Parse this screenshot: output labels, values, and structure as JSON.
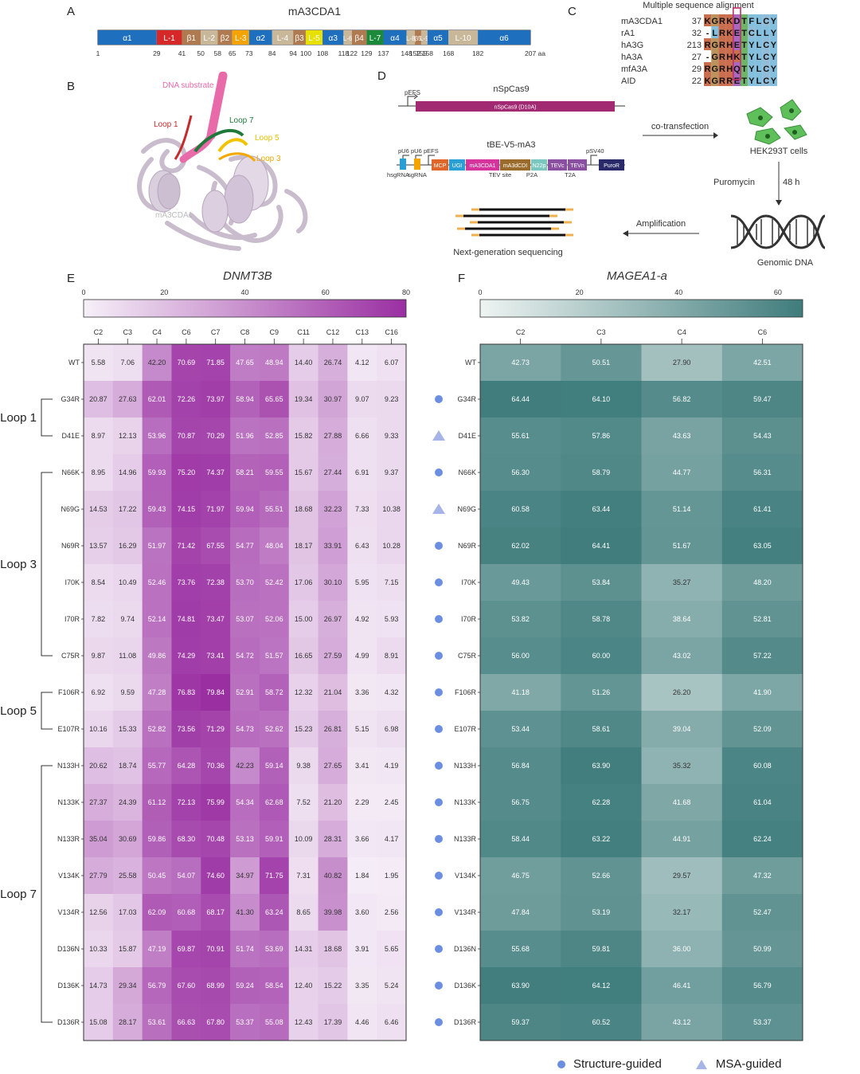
{
  "panels": {
    "A": "A",
    "B": "B",
    "C": "C",
    "D": "D",
    "E": "E",
    "F": "F"
  },
  "panelA": {
    "title": "mA3CDA1",
    "segments": [
      {
        "label": "α1",
        "start": 1,
        "end": 29,
        "color": "#1f6fbf"
      },
      {
        "label": "L-1",
        "start": 29,
        "end": 41,
        "color": "#d62828"
      },
      {
        "label": "β1",
        "start": 41,
        "end": 50,
        "color": "#b07a50"
      },
      {
        "label": "L-2",
        "start": 50,
        "end": 58,
        "color": "#c9b79a"
      },
      {
        "label": "β2",
        "start": 58,
        "end": 65,
        "color": "#b07a50"
      },
      {
        "label": "L-3",
        "start": 65,
        "end": 73,
        "color": "#f4a300"
      },
      {
        "label": "α2",
        "start": 73,
        "end": 84,
        "color": "#1f6fbf"
      },
      {
        "label": "L-4",
        "start": 84,
        "end": 94,
        "color": "#c9b79a"
      },
      {
        "label": "β3",
        "start": 94,
        "end": 100,
        "color": "#b07a50"
      },
      {
        "label": "L-5",
        "start": 100,
        "end": 108,
        "color": "#e8e000"
      },
      {
        "label": "α3",
        "start": 108,
        "end": 118,
        "color": "#1f6fbf"
      },
      {
        "label": "L-6",
        "start": 118,
        "end": 122,
        "color": "#c9b79a"
      },
      {
        "label": "β4",
        "start": 122,
        "end": 129,
        "color": "#b07a50"
      },
      {
        "label": "L-7",
        "start": 129,
        "end": 137,
        "color": "#1a8a3a"
      },
      {
        "label": "α4",
        "start": 137,
        "end": 148,
        "color": "#1f6fbf"
      },
      {
        "label": "L-8",
        "start": 148,
        "end": 152,
        "color": "#c9b79a"
      },
      {
        "label": "β5",
        "start": 152,
        "end": 155,
        "color": "#b07a50"
      },
      {
        "label": "L-9",
        "start": 155,
        "end": 158,
        "color": "#c9b79a"
      },
      {
        "label": "α5",
        "start": 158,
        "end": 168,
        "color": "#1f6fbf"
      },
      {
        "label": "L-10",
        "start": 168,
        "end": 182,
        "color": "#c9b79a"
      },
      {
        "label": "α6",
        "start": 182,
        "end": 207,
        "color": "#1f6fbf"
      }
    ],
    "ticks": [
      "1",
      "29",
      "41",
      "50",
      "58",
      "65",
      "73",
      "84",
      "94",
      "100",
      "108",
      "118",
      "122",
      "129",
      "137",
      "148",
      "152",
      "155",
      "158",
      "168",
      "182",
      "207 aa"
    ]
  },
  "panelB": {
    "dna_label": "DNA substrate",
    "loop1": "Loop 1",
    "loop7": "Loop 7",
    "loop5": "Loop 5",
    "loop3": "Loop 3",
    "protein": "mA3CDA1"
  },
  "panelC": {
    "title": "Multiple sequence alignment",
    "rows": [
      {
        "name": "mA3CDA1",
        "num": "37",
        "seq": "KGRKDTFLCY"
      },
      {
        "name": "rA1",
        "num": "32",
        "seq": "-LRKETCLLY"
      },
      {
        "name": "hA3G",
        "num": "213",
        "seq": "RGRHETYLCY"
      },
      {
        "name": "hA3A",
        "num": "27",
        "seq": "-GRHKTYLCY"
      },
      {
        "name": "mfA3A",
        "num": "29",
        "seq": "RGRHQTYLCY"
      },
      {
        "name": "AID",
        "num": "22",
        "seq": "KGRRETYLCY"
      }
    ]
  },
  "panelD": {
    "top_title": "nSpCas9",
    "promoter1": "pEFS",
    "cas9_box": "nSpCas9 (D10A)",
    "be_title": "tBE-V5-mA3",
    "promoters": [
      "pU6",
      "pU6",
      "pEFS",
      "pSV40"
    ],
    "sub_labels": [
      "hsgRNA",
      "sgRNA",
      "TEV site",
      "P2A",
      "T2A"
    ],
    "boxes": [
      "MCP",
      "UGI",
      "mA3CDA1",
      "mA3dCDI",
      "N22p",
      "TEVc",
      "TEVn",
      "PuroR"
    ],
    "cotransfection": "co-transfection",
    "cells": "HEK293T cells",
    "puromycin": "Puromycin",
    "time": "48 h",
    "amplification": "Amplification",
    "genomic": "Genomic DNA",
    "ngs": "Next-generation sequencing"
  },
  "heatE": {
    "title": "DNMT3B",
    "scale_ticks": [
      "0",
      "20",
      "40",
      "60",
      "80"
    ],
    "columns": [
      "C2",
      "C3",
      "C4",
      "C6",
      "C7",
      "C8",
      "C9",
      "C11",
      "C12",
      "C13",
      "C16"
    ],
    "rows": [
      "WT",
      "G34R",
      "D41E",
      "N66K",
      "N69G",
      "N69R",
      "I70K",
      "I70R",
      "C75R",
      "F106R",
      "E107R",
      "N133H",
      "N133K",
      "N133R",
      "V134K",
      "V134R",
      "D136N",
      "D136K",
      "D136R"
    ],
    "values": [
      [
        5.58,
        7.06,
        42.2,
        70.69,
        71.85,
        47.65,
        48.94,
        14.4,
        26.74,
        4.12,
        6.07
      ],
      [
        20.87,
        27.63,
        62.01,
        72.26,
        73.97,
        58.94,
        65.65,
        19.34,
        30.97,
        9.07,
        9.23
      ],
      [
        8.97,
        12.13,
        53.96,
        70.87,
        70.29,
        51.96,
        52.85,
        15.82,
        27.88,
        6.66,
        9.33
      ],
      [
        8.95,
        14.96,
        59.93,
        75.2,
        74.37,
        58.21,
        59.55,
        15.67,
        27.44,
        6.91,
        9.37
      ],
      [
        14.53,
        17.22,
        59.43,
        74.15,
        71.97,
        59.94,
        55.51,
        18.68,
        32.23,
        7.33,
        10.38
      ],
      [
        13.57,
        16.29,
        51.97,
        71.42,
        67.55,
        54.77,
        48.04,
        18.17,
        33.91,
        6.43,
        10.28
      ],
      [
        8.54,
        10.49,
        52.46,
        73.76,
        72.38,
        53.7,
        52.42,
        17.06,
        30.1,
        5.95,
        7.15
      ],
      [
        7.82,
        9.74,
        52.14,
        74.81,
        73.47,
        53.07,
        52.06,
        15.0,
        26.97,
        4.92,
        5.93
      ],
      [
        9.87,
        11.08,
        49.86,
        74.29,
        73.41,
        54.72,
        51.57,
        16.65,
        27.59,
        4.99,
        8.91
      ],
      [
        6.92,
        9.59,
        47.28,
        76.83,
        79.84,
        52.91,
        58.72,
        12.32,
        21.04,
        3.36,
        4.32
      ],
      [
        10.16,
        15.33,
        52.82,
        73.56,
        71.29,
        54.73,
        52.62,
        15.23,
        26.81,
        5.15,
        6.98
      ],
      [
        20.62,
        18.74,
        55.77,
        64.28,
        70.36,
        42.23,
        59.14,
        9.38,
        27.65,
        3.41,
        4.19
      ],
      [
        27.37,
        24.39,
        61.12,
        72.13,
        75.99,
        54.34,
        62.68,
        7.52,
        21.2,
        2.29,
        2.45
      ],
      [
        35.04,
        30.69,
        59.86,
        68.3,
        70.48,
        53.13,
        59.91,
        10.09,
        28.31,
        3.66,
        4.17
      ],
      [
        27.79,
        25.58,
        50.45,
        54.07,
        74.6,
        34.97,
        71.75,
        7.31,
        40.82,
        1.84,
        1.95
      ],
      [
        12.56,
        17.03,
        62.09,
        60.68,
        68.17,
        41.3,
        63.24,
        8.65,
        39.98,
        3.6,
        2.56
      ],
      [
        10.33,
        15.87,
        47.19,
        69.87,
        70.91,
        51.74,
        53.69,
        14.31,
        18.68,
        3.91,
        5.65
      ],
      [
        14.73,
        29.34,
        56.79,
        67.6,
        68.99,
        59.24,
        58.54,
        12.4,
        15.22,
        3.35,
        5.24
      ],
      [
        15.08,
        28.17,
        53.61,
        66.63,
        67.8,
        53.37,
        55.08,
        12.43,
        17.39,
        4.46,
        6.46
      ]
    ],
    "groups": [
      {
        "label": "Loop 1",
        "from": 1,
        "to": 2
      },
      {
        "label": "Loop 3",
        "from": 3,
        "to": 8
      },
      {
        "label": "Loop 5",
        "from": 9,
        "to": 10
      },
      {
        "label": "Loop 7",
        "from": 11,
        "to": 18
      }
    ]
  },
  "heatF": {
    "title": "MAGEA1-a",
    "scale_ticks": [
      "0",
      "20",
      "40",
      "60"
    ],
    "columns": [
      "C2",
      "C3",
      "C4",
      "C6"
    ],
    "rows": [
      "WT",
      "G34R",
      "D41E",
      "N66K",
      "N69G",
      "N69R",
      "I70K",
      "I70R",
      "C75R",
      "F106R",
      "E107R",
      "N133H",
      "N133K",
      "N133R",
      "V134K",
      "V134R",
      "D136N",
      "D136K",
      "D136R"
    ],
    "markers": [
      "none",
      "circle",
      "triangle",
      "circle",
      "triangle",
      "circle",
      "circle",
      "circle",
      "circle",
      "circle",
      "circle",
      "circle",
      "circle",
      "circle",
      "circle",
      "circle",
      "circle",
      "circle",
      "circle"
    ],
    "values": [
      [
        42.73,
        50.51,
        27.9,
        42.51
      ],
      [
        64.44,
        64.1,
        56.82,
        59.47
      ],
      [
        55.61,
        57.86,
        43.63,
        54.43
      ],
      [
        56.3,
        58.79,
        44.77,
        56.31
      ],
      [
        60.58,
        63.44,
        51.14,
        61.41
      ],
      [
        62.02,
        64.41,
        51.67,
        63.05
      ],
      [
        49.43,
        53.84,
        35.27,
        48.2
      ],
      [
        53.82,
        58.78,
        38.64,
        52.81
      ],
      [
        56.0,
        60.0,
        43.02,
        57.22
      ],
      [
        41.18,
        51.26,
        26.2,
        41.9
      ],
      [
        53.44,
        58.61,
        39.04,
        52.09
      ],
      [
        56.84,
        63.9,
        35.32,
        60.08
      ],
      [
        56.75,
        62.28,
        41.68,
        61.04
      ],
      [
        58.44,
        63.22,
        44.91,
        62.24
      ],
      [
        46.75,
        52.66,
        29.57,
        47.32
      ],
      [
        47.84,
        53.19,
        32.17,
        52.47
      ],
      [
        55.68,
        59.81,
        36.0,
        50.99
      ],
      [
        63.9,
        64.12,
        46.41,
        56.79
      ],
      [
        59.37,
        60.52,
        43.12,
        53.37
      ]
    ]
  },
  "legend": {
    "structure": "Structure-guided",
    "msa": "MSA-guided"
  },
  "colors": {
    "purple": "#9c3aa4",
    "teal": "#4f8c8c",
    "circle": "#6b8ee0",
    "triangle": "#a7b4e8"
  }
}
